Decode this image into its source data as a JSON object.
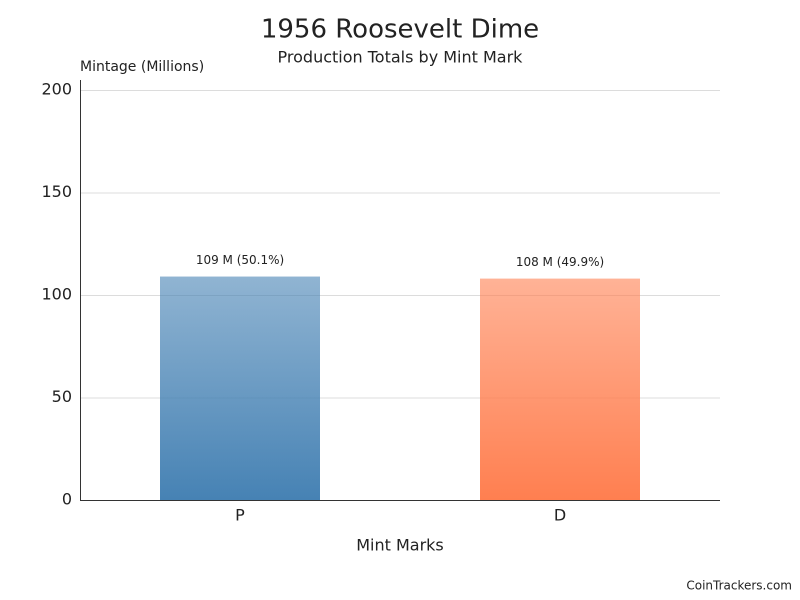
{
  "chart_data": {
    "type": "bar",
    "title": "1956 Roosevelt Dime",
    "subtitle": "Production Totals by Mint Mark",
    "y_label": "Mintage (Millions)",
    "x_label": "Mint Marks",
    "categories": [
      "P",
      "D"
    ],
    "values": [
      109,
      108
    ],
    "value_labels": [
      "109 M (50.1%)",
      "108 M (49.9%)"
    ],
    "colors": [
      "#4682b4",
      "#ff7f50"
    ],
    "ylim": [
      0,
      200
    ],
    "yticks": [
      0,
      50,
      100,
      150,
      200
    ],
    "grid": true
  },
  "footer": "CoinTrackers.com"
}
